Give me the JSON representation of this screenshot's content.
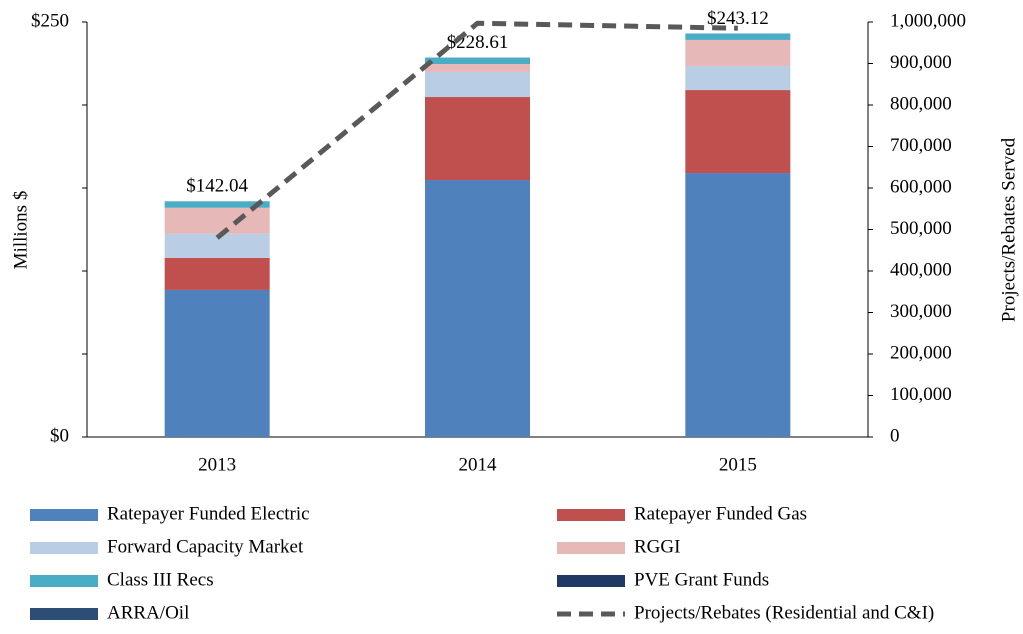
{
  "chart_data": {
    "type": "bar",
    "categories": [
      "2013",
      "2014",
      "2015"
    ],
    "series": [
      {
        "name": "Ratepayer Funded Electric",
        "color": "#4f81bd",
        "values": [
          88.6,
          154.8,
          159
        ]
      },
      {
        "name": "Ratepayer Funded Gas",
        "color": "#c0504d",
        "values": [
          19.3,
          50,
          50
        ]
      },
      {
        "name": "Forward Capacity Market",
        "color": "#b9cde5",
        "values": [
          14.5,
          15.1,
          14.5
        ]
      },
      {
        "name": "RGGI",
        "color": "#e6b9b8",
        "values": [
          15.7,
          4.8,
          15.7
        ]
      },
      {
        "name": "Class III Recs",
        "color": "#4bacc6",
        "values": [
          3.9,
          3.9,
          3.9
        ]
      },
      {
        "name": "PVE Grant Funds",
        "color": "#1f3864",
        "values": [
          0,
          0,
          0
        ]
      },
      {
        "name": "ARRA/Oil",
        "color": "#2c4d75",
        "values": [
          0,
          0,
          0
        ]
      },
      {
        "name": "Projects/Rebates (Residential and C&I)",
        "color": "#595959",
        "type": "line",
        "axis": "y2",
        "values": [
          480000,
          997000,
          985000
        ]
      }
    ],
    "totals": [
      142.04,
      228.61,
      243.12
    ],
    "total_labels": [
      "$142.04",
      "$228.61",
      "$243.12"
    ],
    "ylabel": "Millions $",
    "y2label": "Projects/Rebates Served",
    "ylim": [
      0,
      250
    ],
    "yticks": [
      {
        "value": 0,
        "label": "$0"
      },
      {
        "value": 250,
        "label": "$250"
      }
    ],
    "yminor_ticks": [
      50,
      100,
      150,
      200
    ],
    "y2lim": [
      0,
      1000000
    ],
    "y2ticks": [
      0,
      {
        "value": 100000,
        "label": "100,000"
      },
      {
        "value": 200000,
        "label": "200,000"
      },
      {
        "value": 300000,
        "label": "300,000"
      },
      {
        "value": 400000,
        "label": "400,000"
      },
      {
        "value": 500000,
        "label": "500,000"
      },
      {
        "value": 600000,
        "label": "600,000"
      },
      {
        "value": 700000,
        "label": "700,000"
      },
      {
        "value": 800000,
        "label": "800,000"
      },
      {
        "value": 900000,
        "label": "900,000"
      },
      {
        "value": 1000000,
        "label": "1,000,000"
      }
    ],
    "legend": "bottom"
  }
}
